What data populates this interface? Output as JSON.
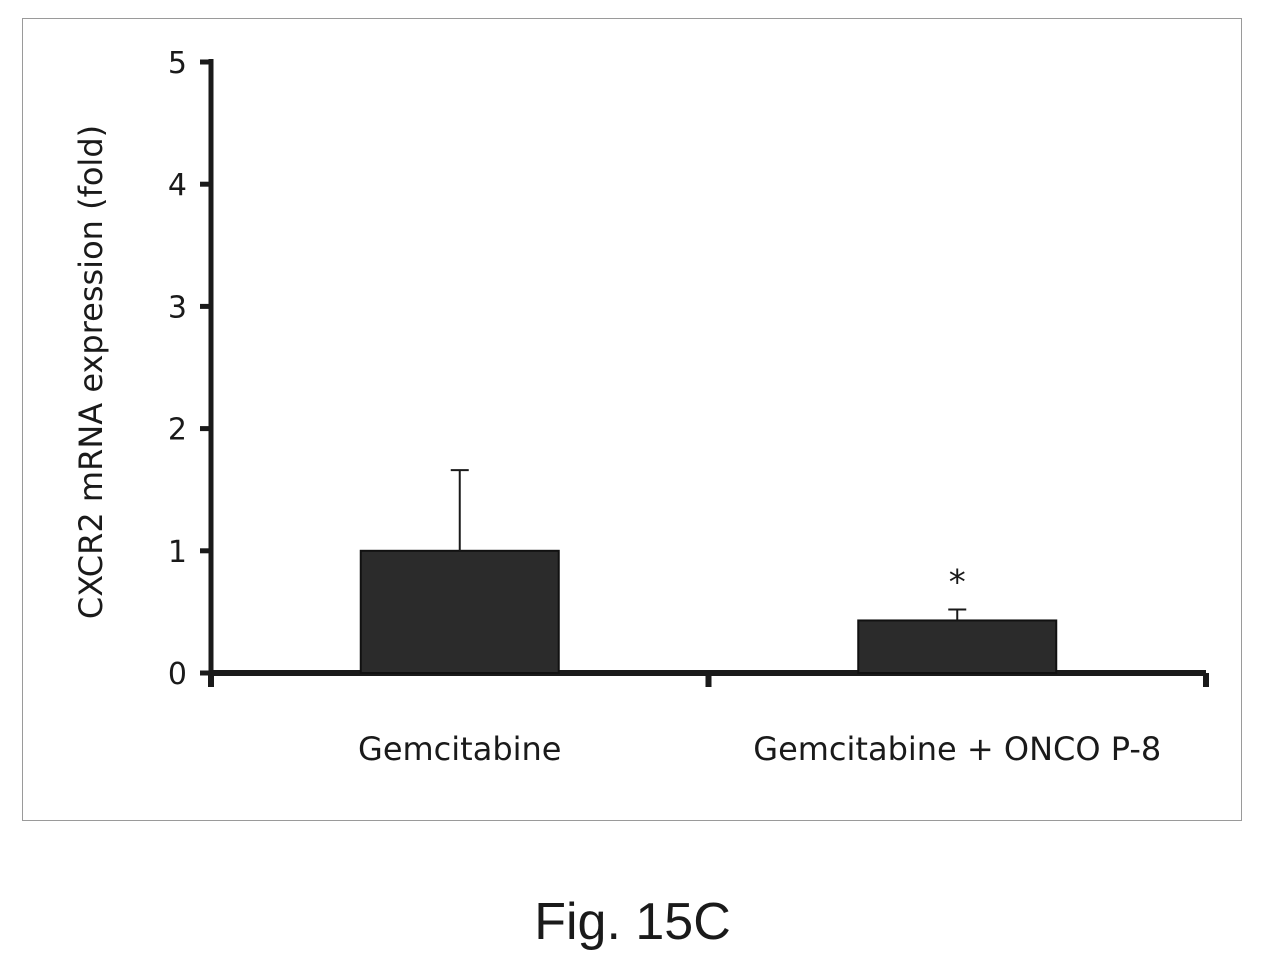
{
  "caption": "Fig. 15C",
  "chart_data": {
    "type": "bar",
    "title": "",
    "xlabel": "",
    "ylabel": "CXCR2 mRNA expression (fold)",
    "ylim": [
      0,
      5
    ],
    "yticks": [
      0,
      1,
      2,
      3,
      4,
      5
    ],
    "ytick_labels": [
      "0",
      "1",
      "2",
      "3",
      "4",
      "5"
    ],
    "categories": [
      "Gemcitabine",
      "Gemcitabine + ONCO P-8"
    ],
    "values": [
      1.0,
      0.43
    ],
    "error_plus": [
      0.66,
      0.09
    ],
    "annotations": [
      "",
      "*"
    ],
    "grid": false,
    "legend": "none",
    "bar_color": "#2b2b2b",
    "axis_color": "#1a1a1a"
  }
}
